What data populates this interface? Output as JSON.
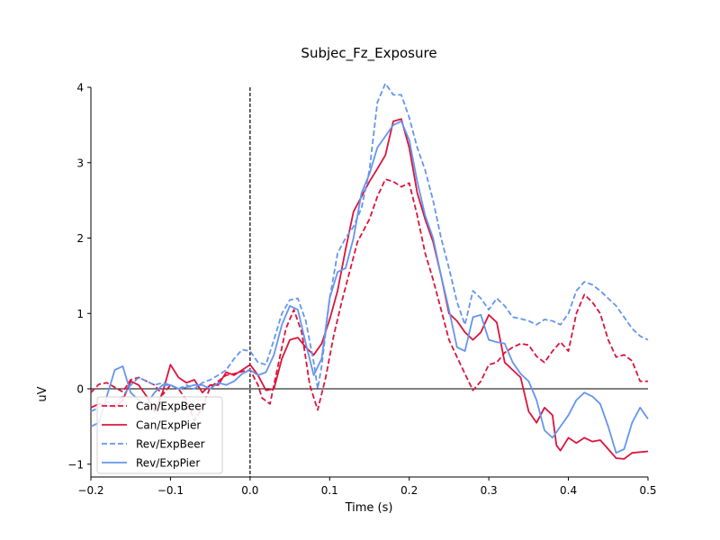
{
  "chart_data": {
    "type": "line",
    "title": "Subjec_Fz_Exposure",
    "xlabel": "Time (s)",
    "ylabel": "uV",
    "xlim": [
      -0.2,
      0.5
    ],
    "ylim": [
      -1.17,
      4.0
    ],
    "xticks": [
      -0.2,
      -0.1,
      0.0,
      0.1,
      0.2,
      0.3,
      0.4,
      0.5
    ],
    "xtick_labels": [
      "−0.2",
      "−0.1",
      "0.0",
      "0.1",
      "0.2",
      "0.3",
      "0.4",
      "0.5"
    ],
    "yticks": [
      -1,
      0,
      1,
      2,
      3,
      4
    ],
    "ytick_labels": [
      "−1",
      "0",
      "1",
      "2",
      "3",
      "4"
    ],
    "event_marker_x": 0.0,
    "zero_line_y": 0,
    "legend_position": "lower-left",
    "grid": false,
    "series": [
      {
        "name": "Can/ExpBeer",
        "color": "#dc143c",
        "dash": true,
        "points": [
          [
            -0.2,
            -0.05
          ],
          [
            -0.19,
            0.06
          ],
          [
            -0.18,
            0.08
          ],
          [
            -0.17,
            0.02
          ],
          [
            -0.16,
            -0.04
          ],
          [
            -0.15,
            0.12
          ],
          [
            -0.14,
            0.15
          ],
          [
            -0.13,
            0.1
          ],
          [
            -0.12,
            0.05
          ],
          [
            -0.11,
            -0.08
          ],
          [
            -0.1,
            0.05
          ],
          [
            -0.09,
            0.0
          ],
          [
            -0.08,
            -0.15
          ],
          [
            -0.07,
            -0.42
          ],
          [
            -0.06,
            -0.25
          ],
          [
            -0.05,
            0.02
          ],
          [
            -0.04,
            0.1
          ],
          [
            -0.03,
            0.18
          ],
          [
            -0.02,
            0.2
          ],
          [
            -0.01,
            0.23
          ],
          [
            0.0,
            0.25
          ],
          [
            0.01,
            0.05
          ],
          [
            0.015,
            -0.12
          ],
          [
            0.025,
            -0.2
          ],
          [
            0.035,
            0.3
          ],
          [
            0.045,
            0.8
          ],
          [
            0.055,
            1.05
          ],
          [
            0.065,
            0.75
          ],
          [
            0.075,
            0.05
          ],
          [
            0.085,
            -0.28
          ],
          [
            0.095,
            0.15
          ],
          [
            0.105,
            0.7
          ],
          [
            0.115,
            1.15
          ],
          [
            0.125,
            1.55
          ],
          [
            0.135,
            1.95
          ],
          [
            0.15,
            2.25
          ],
          [
            0.16,
            2.55
          ],
          [
            0.17,
            2.78
          ],
          [
            0.18,
            2.75
          ],
          [
            0.19,
            2.68
          ],
          [
            0.2,
            2.73
          ],
          [
            0.21,
            2.3
          ],
          [
            0.22,
            1.8
          ],
          [
            0.23,
            1.45
          ],
          [
            0.24,
            1.05
          ],
          [
            0.25,
            0.65
          ],
          [
            0.26,
            0.42
          ],
          [
            0.27,
            0.2
          ],
          [
            0.28,
            -0.02
          ],
          [
            0.29,
            0.1
          ],
          [
            0.3,
            0.32
          ],
          [
            0.31,
            0.35
          ],
          [
            0.32,
            0.48
          ],
          [
            0.33,
            0.55
          ],
          [
            0.34,
            0.6
          ],
          [
            0.35,
            0.58
          ],
          [
            0.36,
            0.43
          ],
          [
            0.37,
            0.35
          ],
          [
            0.38,
            0.5
          ],
          [
            0.39,
            0.62
          ],
          [
            0.4,
            0.5
          ],
          [
            0.41,
            1.0
          ],
          [
            0.42,
            1.25
          ],
          [
            0.43,
            1.15
          ],
          [
            0.44,
            1.0
          ],
          [
            0.45,
            0.65
          ],
          [
            0.46,
            0.42
          ],
          [
            0.47,
            0.45
          ],
          [
            0.48,
            0.37
          ],
          [
            0.49,
            0.1
          ],
          [
            0.5,
            0.1
          ]
        ]
      },
      {
        "name": "Can/ExpPier",
        "color": "#dc143c",
        "dash": false,
        "points": [
          [
            -0.2,
            -0.25
          ],
          [
            -0.19,
            -0.2
          ],
          [
            -0.18,
            -0.22
          ],
          [
            -0.17,
            -0.25
          ],
          [
            -0.16,
            -0.15
          ],
          [
            -0.15,
            0.1
          ],
          [
            -0.14,
            0.05
          ],
          [
            -0.13,
            -0.1
          ],
          [
            -0.12,
            -0.3
          ],
          [
            -0.11,
            -0.05
          ],
          [
            -0.1,
            0.32
          ],
          [
            -0.09,
            0.15
          ],
          [
            -0.08,
            0.08
          ],
          [
            -0.07,
            0.12
          ],
          [
            -0.06,
            -0.05
          ],
          [
            -0.05,
            0.05
          ],
          [
            -0.04,
            0.05
          ],
          [
            -0.03,
            0.22
          ],
          [
            -0.02,
            0.18
          ],
          [
            -0.01,
            0.25
          ],
          [
            0.0,
            0.32
          ],
          [
            0.01,
            0.18
          ],
          [
            0.02,
            -0.02
          ],
          [
            0.03,
            0.0
          ],
          [
            0.04,
            0.4
          ],
          [
            0.05,
            0.65
          ],
          [
            0.06,
            0.68
          ],
          [
            0.07,
            0.55
          ],
          [
            0.08,
            0.45
          ],
          [
            0.09,
            0.6
          ],
          [
            0.1,
            0.92
          ],
          [
            0.11,
            1.3
          ],
          [
            0.12,
            1.85
          ],
          [
            0.13,
            2.35
          ],
          [
            0.14,
            2.55
          ],
          [
            0.15,
            2.75
          ],
          [
            0.16,
            2.92
          ],
          [
            0.17,
            3.1
          ],
          [
            0.18,
            3.55
          ],
          [
            0.19,
            3.58
          ],
          [
            0.2,
            3.2
          ],
          [
            0.21,
            2.6
          ],
          [
            0.22,
            2.25
          ],
          [
            0.23,
            1.95
          ],
          [
            0.24,
            1.5
          ],
          [
            0.25,
            1.0
          ],
          [
            0.26,
            0.9
          ],
          [
            0.27,
            0.75
          ],
          [
            0.28,
            0.65
          ],
          [
            0.29,
            0.75
          ],
          [
            0.3,
            0.98
          ],
          [
            0.31,
            0.88
          ],
          [
            0.32,
            0.35
          ],
          [
            0.33,
            0.25
          ],
          [
            0.34,
            0.15
          ],
          [
            0.35,
            -0.3
          ],
          [
            0.36,
            -0.45
          ],
          [
            0.37,
            -0.25
          ],
          [
            0.38,
            -0.35
          ],
          [
            0.385,
            -0.75
          ],
          [
            0.39,
            -0.82
          ],
          [
            0.4,
            -0.65
          ],
          [
            0.41,
            -0.72
          ],
          [
            0.42,
            -0.65
          ],
          [
            0.43,
            -0.7
          ],
          [
            0.44,
            -0.68
          ],
          [
            0.45,
            -0.8
          ],
          [
            0.46,
            -0.92
          ],
          [
            0.47,
            -0.93
          ],
          [
            0.48,
            -0.85
          ],
          [
            0.5,
            -0.83
          ]
        ]
      },
      {
        "name": "Rev/ExpBeer",
        "color": "#6495ed",
        "dash": true,
        "points": [
          [
            -0.2,
            -0.3
          ],
          [
            -0.19,
            -0.25
          ],
          [
            -0.18,
            -0.18
          ],
          [
            -0.17,
            -0.2
          ],
          [
            -0.16,
            -0.1
          ],
          [
            -0.15,
            0.05
          ],
          [
            -0.14,
            0.15
          ],
          [
            -0.13,
            0.1
          ],
          [
            -0.12,
            0.05
          ],
          [
            -0.11,
            0.08
          ],
          [
            -0.1,
            0.05
          ],
          [
            -0.09,
            0.0
          ],
          [
            -0.08,
            0.05
          ],
          [
            -0.07,
            0.0
          ],
          [
            -0.06,
            0.08
          ],
          [
            -0.05,
            0.12
          ],
          [
            -0.04,
            0.18
          ],
          [
            -0.03,
            0.25
          ],
          [
            -0.02,
            0.4
          ],
          [
            -0.01,
            0.52
          ],
          [
            0.0,
            0.5
          ],
          [
            0.01,
            0.35
          ],
          [
            0.02,
            0.32
          ],
          [
            0.03,
            0.65
          ],
          [
            0.04,
            1.0
          ],
          [
            0.05,
            1.18
          ],
          [
            0.06,
            1.2
          ],
          [
            0.07,
            0.9
          ],
          [
            0.08,
            0.35
          ],
          [
            0.085,
            0.0
          ],
          [
            0.09,
            0.3
          ],
          [
            0.1,
            1.2
          ],
          [
            0.11,
            1.8
          ],
          [
            0.12,
            2.0
          ],
          [
            0.13,
            2.15
          ],
          [
            0.14,
            2.4
          ],
          [
            0.15,
            2.9
          ],
          [
            0.16,
            3.8
          ],
          [
            0.17,
            4.05
          ],
          [
            0.18,
            3.9
          ],
          [
            0.19,
            3.9
          ],
          [
            0.2,
            3.6
          ],
          [
            0.21,
            3.2
          ],
          [
            0.22,
            2.9
          ],
          [
            0.23,
            2.5
          ],
          [
            0.24,
            2.0
          ],
          [
            0.25,
            1.6
          ],
          [
            0.26,
            1.15
          ],
          [
            0.27,
            0.85
          ],
          [
            0.28,
            1.3
          ],
          [
            0.29,
            1.2
          ],
          [
            0.3,
            1.05
          ],
          [
            0.31,
            1.2
          ],
          [
            0.32,
            1.1
          ],
          [
            0.33,
            0.95
          ],
          [
            0.34,
            0.93
          ],
          [
            0.35,
            0.9
          ],
          [
            0.36,
            0.85
          ],
          [
            0.37,
            0.92
          ],
          [
            0.38,
            0.9
          ],
          [
            0.39,
            0.85
          ],
          [
            0.4,
            1.0
          ],
          [
            0.41,
            1.3
          ],
          [
            0.42,
            1.42
          ],
          [
            0.43,
            1.38
          ],
          [
            0.44,
            1.3
          ],
          [
            0.45,
            1.2
          ],
          [
            0.46,
            1.1
          ],
          [
            0.47,
            0.95
          ],
          [
            0.48,
            0.8
          ],
          [
            0.49,
            0.7
          ],
          [
            0.5,
            0.65
          ]
        ]
      },
      {
        "name": "Rev/ExpPier",
        "color": "#6495ed",
        "dash": false,
        "points": [
          [
            -0.2,
            -0.5
          ],
          [
            -0.19,
            -0.45
          ],
          [
            -0.18,
            -0.1
          ],
          [
            -0.17,
            0.25
          ],
          [
            -0.16,
            0.3
          ],
          [
            -0.15,
            -0.05
          ],
          [
            -0.14,
            -0.15
          ],
          [
            -0.13,
            -0.2
          ],
          [
            -0.12,
            -0.05
          ],
          [
            -0.11,
            0.05
          ],
          [
            -0.1,
            0.05
          ],
          [
            -0.09,
            0.0
          ],
          [
            -0.08,
            0.02
          ],
          [
            -0.07,
            0.05
          ],
          [
            -0.06,
            0.05
          ],
          [
            -0.05,
            0.0
          ],
          [
            -0.04,
            0.08
          ],
          [
            -0.03,
            0.05
          ],
          [
            -0.02,
            0.1
          ],
          [
            -0.01,
            0.2
          ],
          [
            0.0,
            0.25
          ],
          [
            0.01,
            0.18
          ],
          [
            0.02,
            0.22
          ],
          [
            0.03,
            0.45
          ],
          [
            0.04,
            0.85
          ],
          [
            0.05,
            1.1
          ],
          [
            0.06,
            1.05
          ],
          [
            0.07,
            0.6
          ],
          [
            0.08,
            0.18
          ],
          [
            0.09,
            0.4
          ],
          [
            0.1,
            1.2
          ],
          [
            0.11,
            1.55
          ],
          [
            0.12,
            1.6
          ],
          [
            0.13,
            2.0
          ],
          [
            0.14,
            2.6
          ],
          [
            0.15,
            2.85
          ],
          [
            0.16,
            3.2
          ],
          [
            0.17,
            3.35
          ],
          [
            0.18,
            3.5
          ],
          [
            0.19,
            3.55
          ],
          [
            0.2,
            3.3
          ],
          [
            0.21,
            2.75
          ],
          [
            0.22,
            2.3
          ],
          [
            0.23,
            2.0
          ],
          [
            0.24,
            1.5
          ],
          [
            0.25,
            1.05
          ],
          [
            0.26,
            0.55
          ],
          [
            0.27,
            0.5
          ],
          [
            0.28,
            0.95
          ],
          [
            0.29,
            0.98
          ],
          [
            0.3,
            0.65
          ],
          [
            0.31,
            0.62
          ],
          [
            0.32,
            0.6
          ],
          [
            0.33,
            0.35
          ],
          [
            0.34,
            0.2
          ],
          [
            0.35,
            0.1
          ],
          [
            0.36,
            -0.15
          ],
          [
            0.37,
            -0.55
          ],
          [
            0.38,
            -0.65
          ],
          [
            0.39,
            -0.5
          ],
          [
            0.4,
            -0.35
          ],
          [
            0.41,
            -0.15
          ],
          [
            0.42,
            -0.05
          ],
          [
            0.43,
            -0.1
          ],
          [
            0.44,
            -0.2
          ],
          [
            0.45,
            -0.5
          ],
          [
            0.46,
            -0.85
          ],
          [
            0.47,
            -0.8
          ],
          [
            0.48,
            -0.45
          ],
          [
            0.49,
            -0.25
          ],
          [
            0.5,
            -0.4
          ]
        ]
      }
    ]
  }
}
